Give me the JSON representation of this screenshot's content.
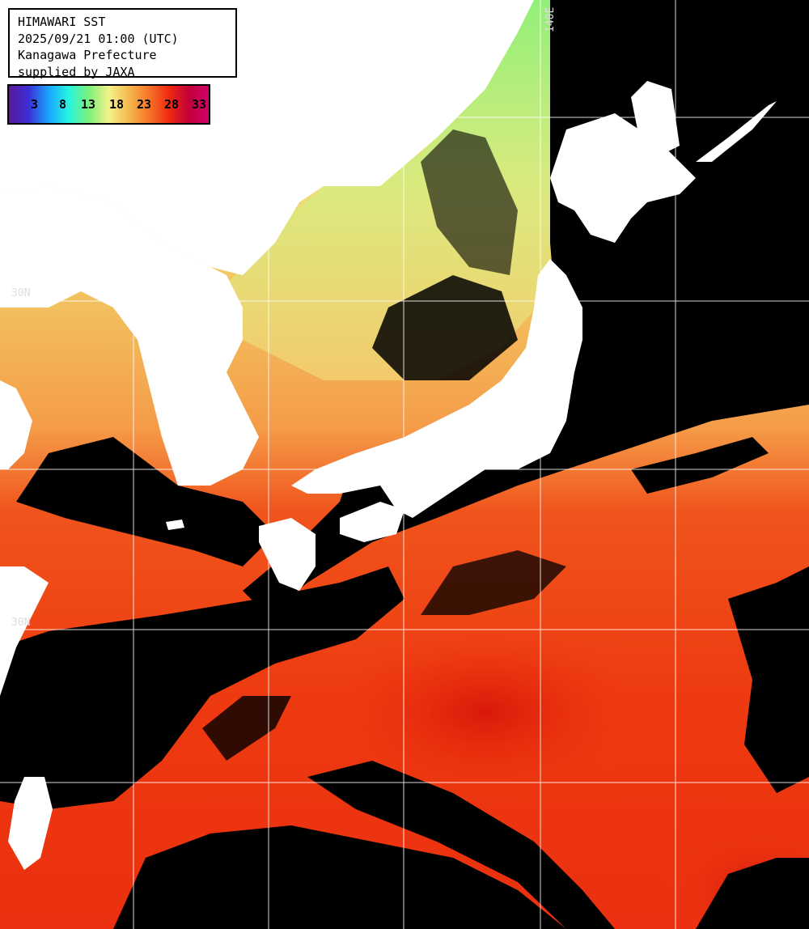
{
  "header": {
    "line1": "HIMAWARI SST",
    "line2": "2025/09/21 01:00 (UTC)",
    "line3": "Kanagawa Prefecture",
    "line4": "supplied by JAXA"
  },
  "legend": {
    "ticks": [
      "3",
      "8",
      "13",
      "18",
      "23",
      "28",
      "33"
    ],
    "colors": [
      "#5a189a",
      "#3b2fd8",
      "#19a6ff",
      "#27f5e0",
      "#7cf07a",
      "#f3f38a",
      "#f5b84e",
      "#f6762a",
      "#ef2a0f",
      "#c4003a",
      "#d0006c"
    ]
  },
  "grid": {
    "lon_label": "140E",
    "lat_label_upper": "30N",
    "lat_label_lower": "30N"
  },
  "colors": {
    "land": "#ffffff",
    "cloud": "#000000",
    "warm_sea": "#f03c12",
    "hot_sea": "#e0200c",
    "mid_sea": "#f5a04a",
    "cool_sea": "#f2e87a",
    "cold_sea": "#96f07a",
    "grid": "#ffffff"
  }
}
